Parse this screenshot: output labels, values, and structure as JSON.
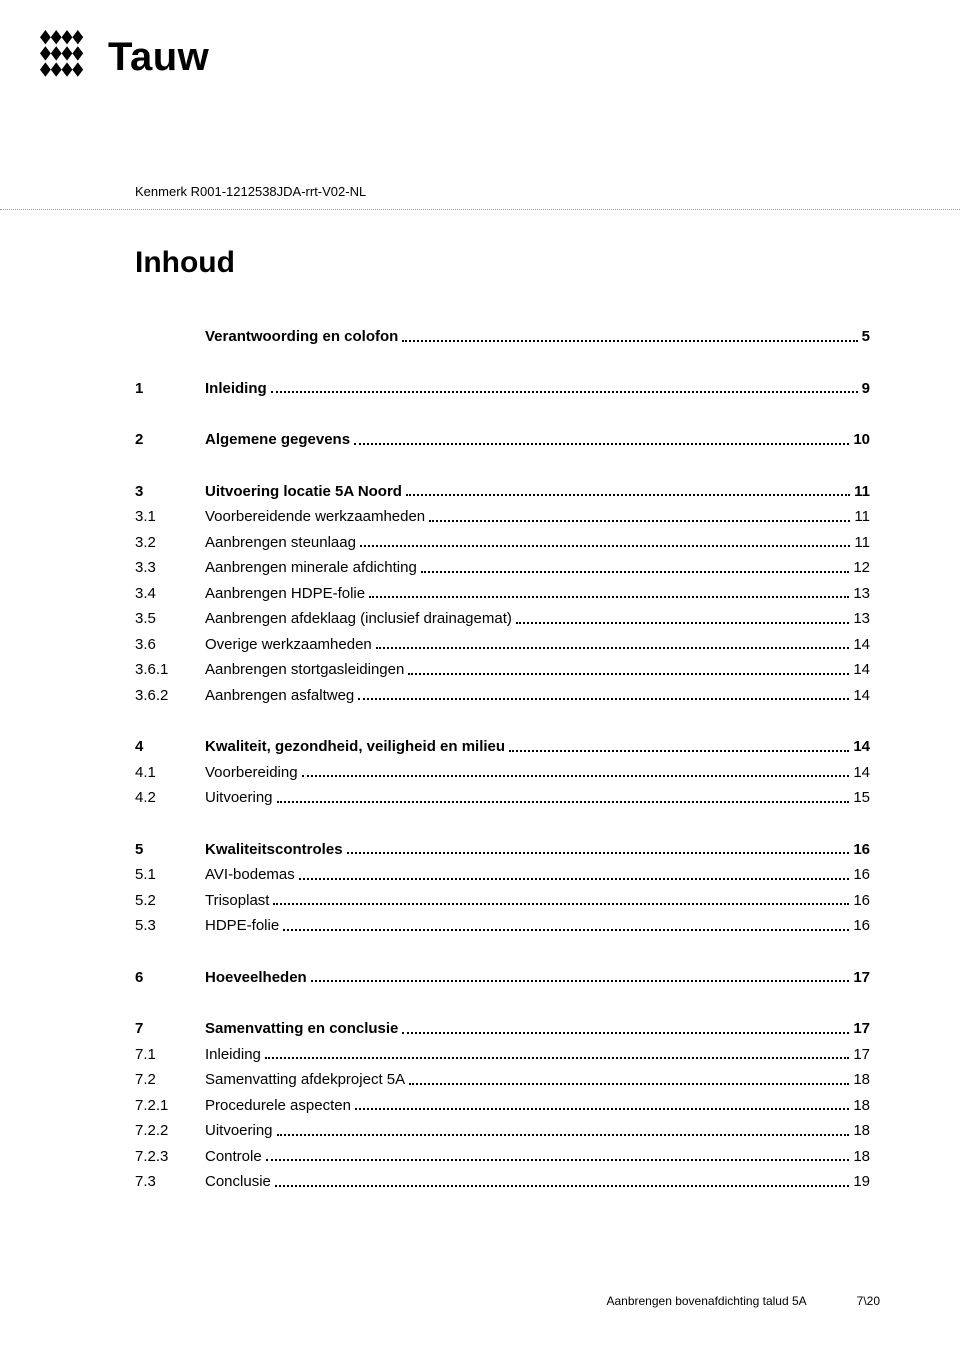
{
  "logo_text": "Tauw",
  "kenmerk": "Kenmerk R001-1212538JDA-rrt-V02-NL",
  "heading": "Inhoud",
  "toc": [
    [
      {
        "num": "",
        "title": "Verantwoording en colofon",
        "page": "5",
        "bold": true
      }
    ],
    [
      {
        "num": "1",
        "title": "Inleiding",
        "page": "9",
        "bold": true
      }
    ],
    [
      {
        "num": "2",
        "title": "Algemene gegevens",
        "page": "10",
        "bold": true
      }
    ],
    [
      {
        "num": "3",
        "title": "Uitvoering locatie 5A Noord",
        "page": "11",
        "bold": true
      },
      {
        "num": "3.1",
        "title": "Voorbereidende werkzaamheden",
        "page": "11",
        "bold": false
      },
      {
        "num": "3.2",
        "title": "Aanbrengen steunlaag",
        "page": "11",
        "bold": false
      },
      {
        "num": "3.3",
        "title": "Aanbrengen minerale afdichting",
        "page": "12",
        "bold": false
      },
      {
        "num": "3.4",
        "title": "Aanbrengen HDPE-folie",
        "page": "13",
        "bold": false
      },
      {
        "num": "3.5",
        "title": "Aanbrengen afdeklaag (inclusief drainagemat)",
        "page": "13",
        "bold": false
      },
      {
        "num": "3.6",
        "title": "Overige werkzaamheden",
        "page": "14",
        "bold": false
      },
      {
        "num": "3.6.1",
        "title": "Aanbrengen stortgasleidingen",
        "page": "14",
        "bold": false
      },
      {
        "num": "3.6.2",
        "title": "Aanbrengen asfaltweg",
        "page": "14",
        "bold": false
      }
    ],
    [
      {
        "num": "4",
        "title": "Kwaliteit, gezondheid, veiligheid en milieu",
        "page": "14",
        "bold": true
      },
      {
        "num": "4.1",
        "title": "Voorbereiding",
        "page": "14",
        "bold": false
      },
      {
        "num": "4.2",
        "title": "Uitvoering",
        "page": "15",
        "bold": false
      }
    ],
    [
      {
        "num": "5",
        "title": "Kwaliteitscontroles",
        "page": "16",
        "bold": true
      },
      {
        "num": "5.1",
        "title": "AVI-bodemas",
        "page": "16",
        "bold": false
      },
      {
        "num": "5.2",
        "title": "Trisoplast",
        "page": "16",
        "bold": false
      },
      {
        "num": "5.3",
        "title": "HDPE-folie",
        "page": "16",
        "bold": false
      }
    ],
    [
      {
        "num": "6",
        "title": "Hoeveelheden",
        "page": "17",
        "bold": true
      }
    ],
    [
      {
        "num": "7",
        "title": "Samenvatting en conclusie",
        "page": "17",
        "bold": true
      },
      {
        "num": "7.1",
        "title": "Inleiding",
        "page": "17",
        "bold": false
      },
      {
        "num": "7.2",
        "title": "Samenvatting afdekproject 5A",
        "page": "18",
        "bold": false
      },
      {
        "num": "7.2.1",
        "title": "Procedurele aspecten",
        "page": "18",
        "bold": false
      },
      {
        "num": "7.2.2",
        "title": "Uitvoering",
        "page": "18",
        "bold": false
      },
      {
        "num": "7.2.3",
        "title": "Controle",
        "page": "18",
        "bold": false
      },
      {
        "num": "7.3",
        "title": "Conclusie",
        "page": "19",
        "bold": false
      }
    ]
  ],
  "footer": {
    "title": "Aanbrengen bovenafdichting talud 5A",
    "page": "7\\20"
  }
}
